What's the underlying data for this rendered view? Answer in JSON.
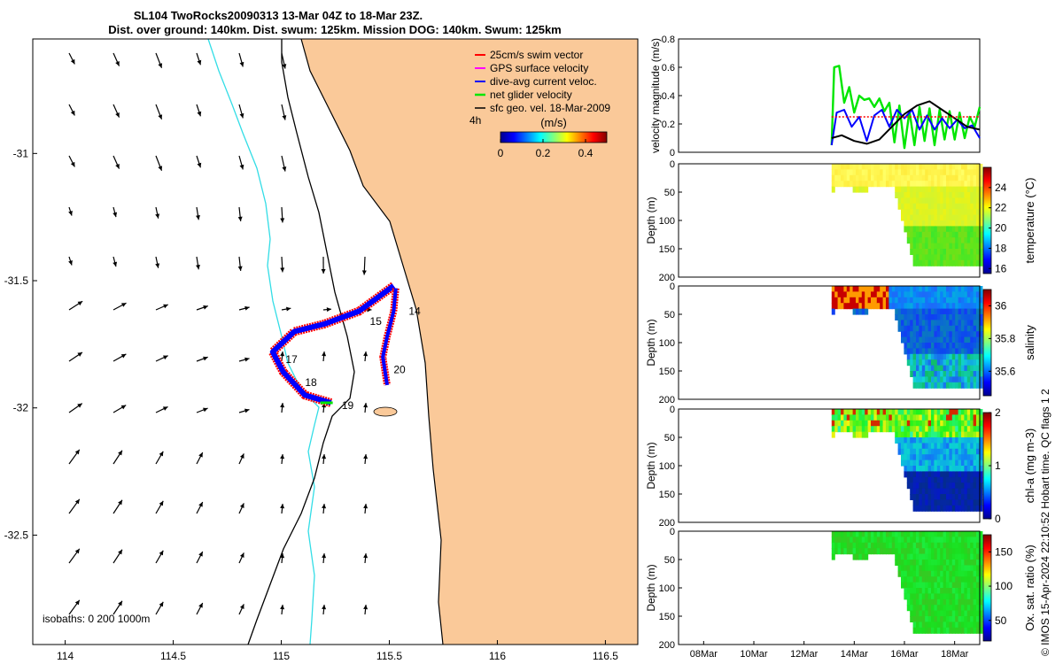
{
  "title": {
    "line1": "SL104 TwoRocks20090313 13-Mar 04Z to 18-Mar 23Z.",
    "line2": "Dist. over ground: 140km. Dist. swum: 125km. Mission DOG: 140km. Swum: 125km"
  },
  "colors": {
    "land": "#fac999",
    "isobath_200": "#000000",
    "isobath_0": "#33dde6",
    "swim_vector": "#ff0000",
    "gps_velocity": "#ff00ff",
    "dive_avg": "#0000ff",
    "net_velocity": "#00e600",
    "sfc_geo": "#000000"
  },
  "chart_data": [
    {
      "type": "map",
      "title": "SL104 TwoRocks20090313 13-Mar 04Z to 18-Mar 23Z.",
      "xlim": [
        113.85,
        116.65
      ],
      "ylim": [
        -32.93,
        -30.55
      ],
      "xticks": [
        114,
        114.5,
        115,
        115.5,
        116,
        116.5
      ],
      "xtick_labels": [
        "114",
        "114.5",
        "115",
        "115.5",
        "116",
        "116.5"
      ],
      "yticks": [
        -31,
        -31.5,
        -32,
        -32.5
      ],
      "ytick_labels": [
        "-31",
        "-31.5",
        "-32",
        "-32.5"
      ],
      "legend": {
        "items": [
          "25cm/s swim vector",
          "GPS surface velocity",
          "dive-avg current veloc.",
          "net glider velocity",
          "sfc geo. vel. 18-Mar-2009"
        ],
        "scale_label": "4h",
        "colorbar_title": "(m/s)",
        "colorbar_ticks": [
          "0",
          "0.2",
          "0.4"
        ],
        "colorbar_range": [
          0,
          0.5
        ]
      },
      "isobaths_label": "isobaths: 0   200   1000m",
      "track_labels": [
        {
          "text": "14",
          "lon": 115.59,
          "lat": -31.62
        },
        {
          "text": "15",
          "lon": 115.41,
          "lat": -31.66
        },
        {
          "text": "17",
          "lon": 115.02,
          "lat": -31.81
        },
        {
          "text": "18",
          "lon": 115.11,
          "lat": -31.9
        },
        {
          "text": "19",
          "lon": 115.28,
          "lat": -31.99
        },
        {
          "text": "20",
          "lon": 115.52,
          "lat": -31.85
        }
      ],
      "track": [
        {
          "lon": 115.52,
          "lat": -31.52
        },
        {
          "lon": 115.36,
          "lat": -31.62
        },
        {
          "lon": 115.2,
          "lat": -31.67
        },
        {
          "lon": 115.06,
          "lat": -31.7
        },
        {
          "lon": 114.96,
          "lat": -31.78
        },
        {
          "lon": 115.01,
          "lat": -31.86
        },
        {
          "lon": 115.11,
          "lat": -31.95
        },
        {
          "lon": 115.23,
          "lat": -31.98
        }
      ],
      "track_east": [
        {
          "lon": 115.53,
          "lat": -31.53
        },
        {
          "lon": 115.52,
          "lat": -31.62
        },
        {
          "lon": 115.49,
          "lat": -31.72
        },
        {
          "lon": 115.47,
          "lat": -31.8
        },
        {
          "lon": 115.49,
          "lat": -31.91
        }
      ]
    },
    {
      "type": "line",
      "ylabel": "velocity magnitude (m/s)",
      "ylim": [
        0,
        0.8
      ],
      "yticks": [
        0,
        0.2,
        0.4,
        0.6,
        0.8
      ],
      "xlim": [
        7,
        19
      ],
      "series": [
        {
          "name": "net glider velocity",
          "color": "#00e600",
          "x": [
            13.1,
            13.2,
            13.4,
            13.6,
            13.8,
            14.0,
            14.2,
            14.4,
            14.6,
            14.8,
            15.0,
            15.2,
            15.4,
            15.6,
            15.8,
            16.0,
            16.2,
            16.4,
            16.6,
            16.8,
            17.0,
            17.2,
            17.4,
            17.6,
            17.8,
            18.0,
            18.2,
            18.4,
            18.6,
            18.8,
            19.0
          ],
          "y": [
            0.05,
            0.6,
            0.61,
            0.35,
            0.46,
            0.28,
            0.4,
            0.37,
            0.38,
            0.32,
            0.38,
            0.29,
            0.35,
            0.07,
            0.33,
            0.03,
            0.29,
            0.05,
            0.32,
            0.08,
            0.31,
            0.05,
            0.3,
            0.09,
            0.29,
            0.09,
            0.28,
            0.1,
            0.25,
            0.18,
            0.32
          ]
        },
        {
          "name": "dive-avg current veloc.",
          "color": "#0000ff",
          "x": [
            13.1,
            13.3,
            13.6,
            13.9,
            14.2,
            14.5,
            14.8,
            15.1,
            15.4,
            15.7,
            16.0,
            16.3,
            16.6,
            16.9,
            17.2,
            17.5,
            17.8,
            18.1,
            18.4,
            18.7,
            19.0
          ],
          "y": [
            0.05,
            0.28,
            0.3,
            0.18,
            0.25,
            0.08,
            0.26,
            0.3,
            0.18,
            0.3,
            0.24,
            0.3,
            0.16,
            0.26,
            0.16,
            0.24,
            0.17,
            0.23,
            0.17,
            0.19,
            0.1
          ]
        },
        {
          "name": "sfc geo. vel.",
          "color": "#000000",
          "x": [
            13.1,
            13.5,
            14.0,
            14.5,
            15.0,
            15.5,
            16.0,
            16.5,
            17.0,
            17.5,
            18.0,
            18.5,
            19.0
          ],
          "y": [
            0.1,
            0.12,
            0.08,
            0.06,
            0.09,
            0.18,
            0.27,
            0.33,
            0.36,
            0.3,
            0.24,
            0.18,
            0.16
          ]
        },
        {
          "name": "swim vector",
          "color": "#ff0000",
          "x": [
            13.1,
            19.0
          ],
          "y": [
            0.25,
            0.25
          ]
        }
      ]
    },
    {
      "type": "heatmap",
      "variable": "temperature",
      "ylabel": "Depth (m)",
      "colorbar_label": "temperature (°C)",
      "ylim": [
        0,
        200
      ],
      "yticks": [
        0,
        50,
        100,
        150,
        200
      ],
      "clim": [
        15.5,
        26
      ],
      "colorbar_ticks": [
        16,
        18,
        20,
        22,
        24
      ],
      "x_start": 13.1,
      "x_end": 19.0,
      "max_depth": 180,
      "shallow_until": 15.5,
      "shallow_depth": 40
    },
    {
      "type": "heatmap",
      "variable": "salinity",
      "ylabel": "Depth (m)",
      "colorbar_label": "salinity",
      "ylim": [
        0,
        200
      ],
      "yticks": [
        0,
        50,
        100,
        150,
        200
      ],
      "clim": [
        35.45,
        36.1
      ],
      "colorbar_ticks": [
        35.6,
        35.8,
        36
      ],
      "x_start": 13.1,
      "x_end": 19.0,
      "max_depth": 180,
      "shallow_until": 15.5,
      "shallow_depth": 40
    },
    {
      "type": "heatmap",
      "variable": "chl-a",
      "ylabel": "Depth (m)",
      "colorbar_label": "chl-a (mg m-3)",
      "ylim": [
        0,
        200
      ],
      "yticks": [
        0,
        50,
        100,
        150,
        200
      ],
      "clim": [
        0,
        2
      ],
      "colorbar_ticks": [
        0,
        1,
        2
      ],
      "x_start": 13.1,
      "x_end": 19.0,
      "max_depth": 180,
      "shallow_until": 15.5,
      "shallow_depth": 40
    },
    {
      "type": "heatmap",
      "variable": "oxygen",
      "ylabel": "Depth (m)",
      "colorbar_label": "Ox. sat. ratio (%)",
      "ylim": [
        0,
        200
      ],
      "yticks": [
        0,
        50,
        100,
        150,
        200
      ],
      "clim": [
        20,
        175
      ],
      "colorbar_ticks": [
        50,
        100,
        150
      ],
      "x_start": 13.1,
      "x_end": 19.0,
      "max_depth": 180,
      "shallow_until": 15.5,
      "shallow_depth": 40
    }
  ],
  "time_axis": {
    "xlim": [
      7,
      19
    ],
    "ticks": [
      8,
      10,
      12,
      14,
      16,
      18
    ],
    "tick_labels": [
      "08Mar",
      "10Mar",
      "12Mar",
      "14Mar",
      "16Mar",
      "18Mar"
    ]
  },
  "side_text": {
    "credit": "© IMOS 15-Apr-2024 22:10:52 Hobart time. QC flags 1  2"
  }
}
